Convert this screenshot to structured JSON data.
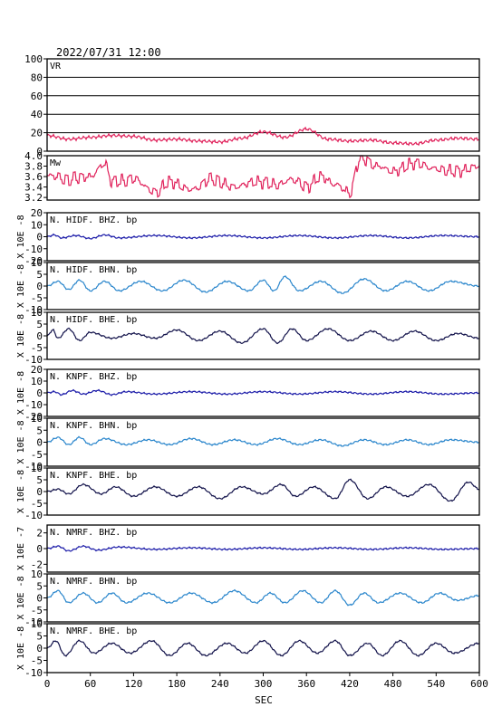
{
  "title": "2022/07/31  12:00",
  "chart_data": {
    "type": "line",
    "xlabel": "SEC",
    "xlim": [
      0,
      600
    ],
    "xticks": [
      "0",
      "60",
      "120",
      "180",
      "240",
      "300",
      "360",
      "420",
      "480",
      "540",
      "600"
    ],
    "panels": [
      {
        "label": "VR",
        "ylabel": "",
        "ylim": [
          0,
          100
        ],
        "color": "#e0205a",
        "yticks": [
          "0",
          "20",
          "40",
          "60",
          "80",
          "100"
        ],
        "grid": true,
        "knots": [
          [
            0,
            17
          ],
          [
            30,
            13
          ],
          [
            60,
            15
          ],
          [
            90,
            17
          ],
          [
            120,
            16
          ],
          [
            150,
            12
          ],
          [
            180,
            13
          ],
          [
            210,
            11
          ],
          [
            240,
            10
          ],
          [
            270,
            14
          ],
          [
            300,
            21
          ],
          [
            330,
            15
          ],
          [
            360,
            24
          ],
          [
            390,
            13
          ],
          [
            420,
            11
          ],
          [
            450,
            12
          ],
          [
            480,
            9
          ],
          [
            510,
            8
          ],
          [
            540,
            12
          ],
          [
            570,
            14
          ],
          [
            600,
            13
          ]
        ]
      },
      {
        "label": "Mw",
        "ylabel": "",
        "ylim": [
          3.15,
          4.0
        ],
        "color": "#e0205a",
        "yticks": [
          "3.2",
          "3.4",
          "3.6",
          "3.8",
          "4.0"
        ],
        "grid": false,
        "knots": [
          [
            0,
            3.62
          ],
          [
            30,
            3.55
          ],
          [
            60,
            3.6
          ],
          [
            80,
            3.85
          ],
          [
            90,
            3.5
          ],
          [
            120,
            3.55
          ],
          [
            150,
            3.3
          ],
          [
            170,
            3.5
          ],
          [
            200,
            3.35
          ],
          [
            230,
            3.55
          ],
          [
            260,
            3.4
          ],
          [
            290,
            3.5
          ],
          [
            320,
            3.45
          ],
          [
            340,
            3.55
          ],
          [
            360,
            3.4
          ],
          [
            380,
            3.6
          ],
          [
            400,
            3.45
          ],
          [
            420,
            3.3
          ],
          [
            435,
            3.95
          ],
          [
            460,
            3.8
          ],
          [
            480,
            3.7
          ],
          [
            510,
            3.85
          ],
          [
            540,
            3.75
          ],
          [
            570,
            3.7
          ],
          [
            600,
            3.8
          ]
        ]
      },
      {
        "label": "N. HIDF. BHZ. bp",
        "ylabel": "X 10E -8",
        "ylim": [
          -20,
          20
        ],
        "color": "#1a1aa8",
        "yticks": [
          "-20",
          "-10",
          "0",
          "10",
          "20"
        ],
        "grid": false,
        "knots": [
          [
            0,
            0
          ],
          [
            10,
            1.5
          ],
          [
            20,
            -1
          ],
          [
            40,
            1
          ],
          [
            60,
            -1.5
          ],
          [
            80,
            1.5
          ],
          [
            100,
            -1
          ],
          [
            150,
            1
          ],
          [
            200,
            -1
          ],
          [
            250,
            1
          ],
          [
            300,
            -1
          ],
          [
            350,
            1
          ],
          [
            400,
            -1
          ],
          [
            450,
            1
          ],
          [
            500,
            -1
          ],
          [
            550,
            1
          ],
          [
            600,
            0
          ]
        ]
      },
      {
        "label": "N. HIDF. BHN. bp",
        "ylabel": "X 10E -8",
        "ylim": [
          -10,
          10
        ],
        "color": "#2a86cc",
        "yticks": [
          "-10",
          "-5",
          "0",
          "5",
          "10"
        ],
        "grid": false,
        "knots": [
          [
            0,
            0
          ],
          [
            15,
            2
          ],
          [
            30,
            -1.5
          ],
          [
            45,
            2.5
          ],
          [
            60,
            -2
          ],
          [
            80,
            2
          ],
          [
            100,
            -2
          ],
          [
            130,
            2
          ],
          [
            160,
            -2
          ],
          [
            190,
            2.5
          ],
          [
            220,
            -2.5
          ],
          [
            250,
            2
          ],
          [
            280,
            -2
          ],
          [
            300,
            2.5
          ],
          [
            315,
            -2
          ],
          [
            330,
            4
          ],
          [
            350,
            -2
          ],
          [
            380,
            2
          ],
          [
            410,
            -3
          ],
          [
            440,
            3
          ],
          [
            470,
            -2
          ],
          [
            500,
            2
          ],
          [
            530,
            -2
          ],
          [
            560,
            2
          ],
          [
            600,
            0
          ]
        ]
      },
      {
        "label": "N. HIDF. BHE. bp",
        "ylabel": "X 10E -8",
        "ylim": [
          -10,
          10
        ],
        "color": "#12124a",
        "yticks": [
          "-10",
          "-5",
          "0",
          "5",
          "10"
        ],
        "grid": false,
        "knots": [
          [
            0,
            0
          ],
          [
            8,
            2.5
          ],
          [
            15,
            -1
          ],
          [
            30,
            3
          ],
          [
            45,
            -2
          ],
          [
            60,
            1.5
          ],
          [
            90,
            -1
          ],
          [
            120,
            1
          ],
          [
            150,
            -1
          ],
          [
            180,
            2.5
          ],
          [
            210,
            -2
          ],
          [
            240,
            2
          ],
          [
            270,
            -3
          ],
          [
            300,
            3
          ],
          [
            320,
            -3
          ],
          [
            340,
            3
          ],
          [
            360,
            -2
          ],
          [
            390,
            3
          ],
          [
            420,
            -2
          ],
          [
            450,
            2
          ],
          [
            480,
            -2
          ],
          [
            510,
            2
          ],
          [
            540,
            -2
          ],
          [
            570,
            1
          ],
          [
            600,
            -1
          ]
        ]
      },
      {
        "label": "N. KNPF. BHZ. bp",
        "ylabel": "X 10E -8",
        "ylim": [
          -20,
          20
        ],
        "color": "#1a1aa8",
        "yticks": [
          "-20",
          "-10",
          "0",
          "10",
          "20"
        ],
        "grid": false,
        "knots": [
          [
            0,
            0
          ],
          [
            10,
            1
          ],
          [
            20,
            -1.5
          ],
          [
            35,
            2
          ],
          [
            50,
            -1
          ],
          [
            70,
            2
          ],
          [
            90,
            -1.5
          ],
          [
            110,
            1
          ],
          [
            150,
            -1
          ],
          [
            200,
            1
          ],
          [
            250,
            -1
          ],
          [
            300,
            1
          ],
          [
            350,
            -1
          ],
          [
            400,
            1
          ],
          [
            450,
            -1
          ],
          [
            500,
            1
          ],
          [
            550,
            -1
          ],
          [
            600,
            0
          ]
        ]
      },
      {
        "label": "N. KNPF. BHN. bp",
        "ylabel": "X 10E -8",
        "ylim": [
          -10,
          10
        ],
        "color": "#2a86cc",
        "yticks": [
          "-10",
          "-5",
          "0",
          "5",
          "10"
        ],
        "grid": false,
        "knots": [
          [
            0,
            0
          ],
          [
            15,
            2
          ],
          [
            30,
            -1
          ],
          [
            45,
            2
          ],
          [
            60,
            -1
          ],
          [
            80,
            1.5
          ],
          [
            110,
            -1
          ],
          [
            140,
            1
          ],
          [
            170,
            -1
          ],
          [
            200,
            1.5
          ],
          [
            230,
            -1
          ],
          [
            260,
            1
          ],
          [
            290,
            -1
          ],
          [
            320,
            1.5
          ],
          [
            350,
            -1
          ],
          [
            380,
            1
          ],
          [
            410,
            -1.5
          ],
          [
            440,
            1
          ],
          [
            470,
            -1
          ],
          [
            500,
            1
          ],
          [
            530,
            -1
          ],
          [
            560,
            1
          ],
          [
            600,
            0
          ]
        ]
      },
      {
        "label": "N. KNPF. BHE. bp",
        "ylabel": "X 10E -8",
        "ylim": [
          -10,
          10
        ],
        "color": "#12124a",
        "yticks": [
          "-10",
          "-5",
          "0",
          "5",
          "10"
        ],
        "grid": false,
        "knots": [
          [
            0,
            0
          ],
          [
            15,
            1
          ],
          [
            30,
            -1
          ],
          [
            50,
            3
          ],
          [
            75,
            -1
          ],
          [
            95,
            2
          ],
          [
            120,
            -2
          ],
          [
            150,
            2
          ],
          [
            180,
            -2
          ],
          [
            210,
            2
          ],
          [
            240,
            -3
          ],
          [
            270,
            2
          ],
          [
            300,
            -1
          ],
          [
            325,
            3
          ],
          [
            345,
            -2
          ],
          [
            370,
            2
          ],
          [
            400,
            -3
          ],
          [
            420,
            5
          ],
          [
            445,
            -3
          ],
          [
            470,
            2
          ],
          [
            500,
            -2
          ],
          [
            530,
            3
          ],
          [
            560,
            -4
          ],
          [
            585,
            4
          ],
          [
            600,
            1
          ]
        ]
      },
      {
        "label": "N. NMRF. BHZ. bp",
        "ylabel": "X 10E -7",
        "ylim": [
          -3,
          3
        ],
        "color": "#1a1aa8",
        "yticks": [
          "-2",
          "0",
          "2"
        ],
        "grid": false,
        "knots": [
          [
            0,
            0
          ],
          [
            15,
            0.3
          ],
          [
            30,
            -0.3
          ],
          [
            50,
            0.3
          ],
          [
            70,
            -0.2
          ],
          [
            100,
            0.2
          ],
          [
            150,
            -0.1
          ],
          [
            200,
            0.1
          ],
          [
            250,
            -0.1
          ],
          [
            300,
            0.1
          ],
          [
            350,
            -0.1
          ],
          [
            400,
            0.1
          ],
          [
            450,
            -0.1
          ],
          [
            500,
            0.1
          ],
          [
            550,
            -0.1
          ],
          [
            600,
            0
          ]
        ]
      },
      {
        "label": "N. NMRF. BHN. bp",
        "ylabel": "X 10E -8",
        "ylim": [
          -10,
          10
        ],
        "color": "#2a86cc",
        "yticks": [
          "-10",
          "-5",
          "0",
          "5",
          "10"
        ],
        "grid": false,
        "knots": [
          [
            0,
            0
          ],
          [
            15,
            3
          ],
          [
            30,
            -2
          ],
          [
            50,
            2
          ],
          [
            70,
            -2
          ],
          [
            90,
            2
          ],
          [
            110,
            -2
          ],
          [
            140,
            2
          ],
          [
            170,
            -2
          ],
          [
            200,
            2
          ],
          [
            230,
            -2
          ],
          [
            260,
            3
          ],
          [
            290,
            -2
          ],
          [
            310,
            2
          ],
          [
            330,
            -2
          ],
          [
            355,
            3
          ],
          [
            380,
            -2
          ],
          [
            400,
            3
          ],
          [
            420,
            -3
          ],
          [
            440,
            2
          ],
          [
            460,
            -2
          ],
          [
            490,
            2
          ],
          [
            520,
            -2
          ],
          [
            545,
            2
          ],
          [
            570,
            -1
          ],
          [
            600,
            1
          ]
        ]
      },
      {
        "label": "N. NMRF. BHE. bp",
        "ylabel": "X 10E -8",
        "ylim": [
          -10,
          10
        ],
        "color": "#12124a",
        "yticks": [
          "-10",
          "-5",
          "0",
          "5",
          "10"
        ],
        "grid": false,
        "knots": [
          [
            0,
            0
          ],
          [
            12,
            3
          ],
          [
            25,
            -3
          ],
          [
            45,
            3
          ],
          [
            65,
            -2
          ],
          [
            90,
            2
          ],
          [
            115,
            -2
          ],
          [
            145,
            3
          ],
          [
            170,
            -3
          ],
          [
            195,
            2
          ],
          [
            220,
            -3
          ],
          [
            250,
            2
          ],
          [
            275,
            -2
          ],
          [
            300,
            3
          ],
          [
            325,
            -3
          ],
          [
            350,
            3
          ],
          [
            375,
            -2
          ],
          [
            400,
            3
          ],
          [
            420,
            -3
          ],
          [
            445,
            2
          ],
          [
            465,
            -3
          ],
          [
            490,
            3
          ],
          [
            515,
            -3
          ],
          [
            540,
            2
          ],
          [
            565,
            -2
          ],
          [
            600,
            2
          ]
        ]
      }
    ]
  }
}
